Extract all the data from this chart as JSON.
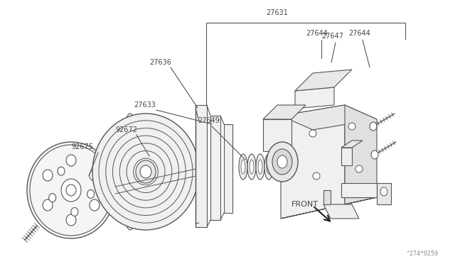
{
  "bg_color": "#ffffff",
  "line_color": "#555555",
  "text_color": "#444444",
  "watermark": "^274*0259",
  "fig_w": 6.4,
  "fig_h": 3.72,
  "dpi": 100
}
